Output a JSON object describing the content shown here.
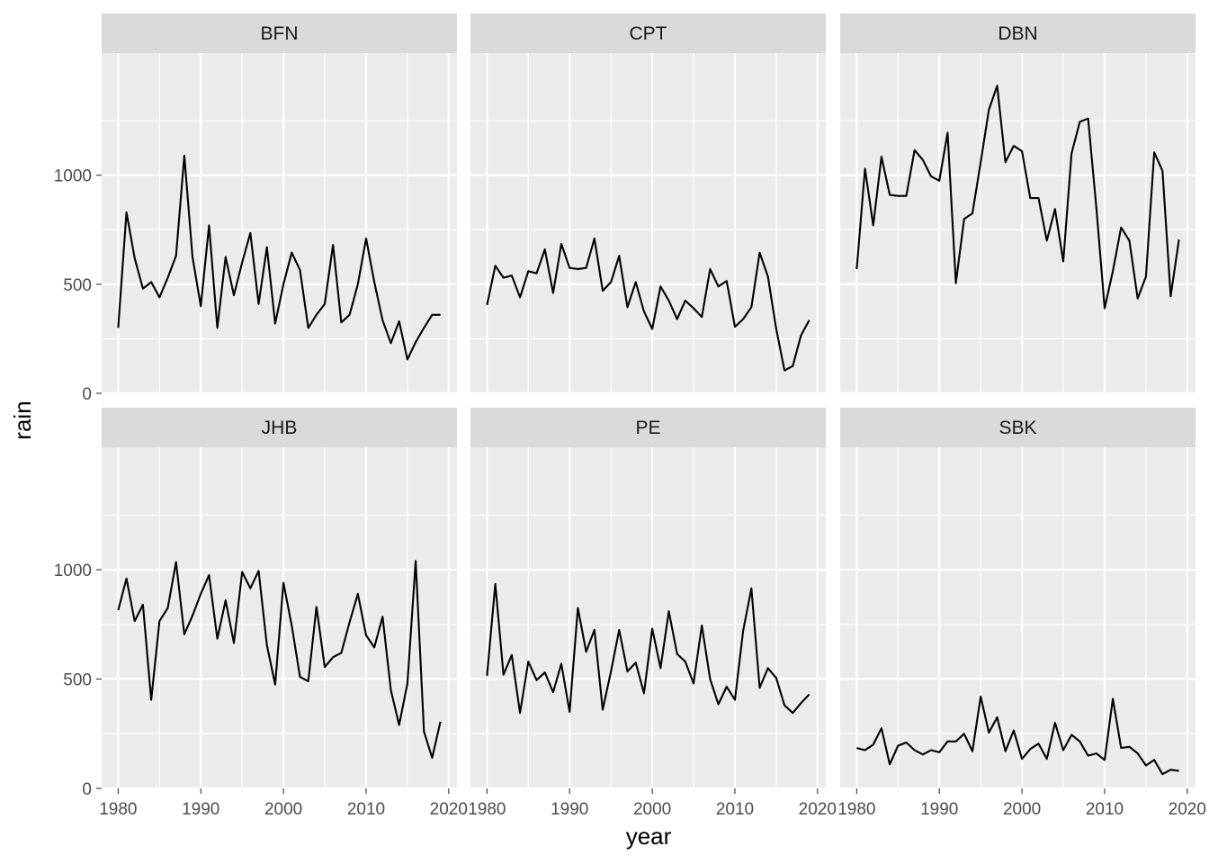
{
  "chart_data": {
    "type": "line",
    "xlabel": "year",
    "ylabel": "rain",
    "xlim": [
      1978,
      2021
    ],
    "ylim": [
      0,
      1560
    ],
    "x_ticks": [
      1980,
      1990,
      2000,
      2010,
      2020
    ],
    "y_ticks": [
      0,
      500,
      1000
    ],
    "x_tick_labels": [
      "1980",
      "1990",
      "2000",
      "2010",
      "2020"
    ],
    "y_tick_labels": [
      "0",
      "500",
      "1000"
    ],
    "grid": true,
    "layout": "facet grid 2 rows x 3 columns",
    "x": [
      1980,
      1981,
      1982,
      1983,
      1984,
      1985,
      1986,
      1987,
      1988,
      1989,
      1990,
      1991,
      1992,
      1993,
      1994,
      1995,
      1996,
      1997,
      1998,
      1999,
      2000,
      2001,
      2002,
      2003,
      2004,
      2005,
      2006,
      2007,
      2008,
      2009,
      2010,
      2011,
      2012,
      2013,
      2014,
      2015,
      2016,
      2017,
      2018,
      2019
    ],
    "panels": [
      {
        "title": "BFN",
        "values": [
          300,
          830,
          620,
          480,
          510,
          440,
          530,
          630,
          1090,
          625,
          400,
          770,
          300,
          625,
          450,
          600,
          735,
          410,
          670,
          320,
          500,
          645,
          565,
          300,
          360,
          410,
          680,
          325,
          360,
          500,
          710,
          510,
          335,
          230,
          330,
          155,
          235,
          300,
          360,
          360
        ]
      },
      {
        "title": "CPT",
        "values": [
          405,
          585,
          530,
          540,
          440,
          560,
          550,
          660,
          460,
          685,
          575,
          570,
          575,
          710,
          470,
          510,
          630,
          395,
          510,
          375,
          295,
          490,
          425,
          340,
          425,
          390,
          350,
          570,
          490,
          515,
          305,
          340,
          395,
          645,
          535,
          295,
          105,
          125,
          265,
          335
        ]
      },
      {
        "title": "DBN",
        "values": [
          570,
          1030,
          770,
          1085,
          910,
          905,
          905,
          1115,
          1070,
          995,
          975,
          1195,
          505,
          800,
          825,
          1060,
          1300,
          1410,
          1060,
          1135,
          1110,
          895,
          895,
          700,
          845,
          605,
          1100,
          1245,
          1260,
          850,
          390,
          560,
          760,
          700,
          435,
          535,
          1105,
          1020,
          445,
          705
        ]
      },
      {
        "title": "JHB",
        "values": [
          815,
          960,
          765,
          840,
          405,
          765,
          825,
          1035,
          705,
          790,
          890,
          975,
          685,
          860,
          665,
          990,
          915,
          995,
          655,
          475,
          940,
          745,
          510,
          490,
          830,
          555,
          600,
          620,
          760,
          890,
          700,
          645,
          785,
          450,
          290,
          480,
          1040,
          260,
          140,
          305
        ]
      },
      {
        "title": "PE",
        "values": [
          515,
          935,
          520,
          610,
          345,
          580,
          495,
          530,
          440,
          570,
          350,
          825,
          625,
          725,
          360,
          535,
          725,
          535,
          575,
          435,
          730,
          550,
          810,
          615,
          580,
          480,
          745,
          500,
          385,
          465,
          405,
          720,
          915,
          460,
          550,
          505,
          380,
          345,
          390,
          430
        ]
      },
      {
        "title": "SBK",
        "values": [
          185,
          175,
          200,
          275,
          110,
          195,
          210,
          175,
          155,
          175,
          165,
          215,
          215,
          250,
          170,
          420,
          255,
          325,
          170,
          265,
          135,
          180,
          205,
          135,
          300,
          175,
          245,
          215,
          150,
          160,
          130,
          410,
          185,
          190,
          160,
          105,
          130,
          65,
          85,
          80
        ]
      }
    ]
  }
}
